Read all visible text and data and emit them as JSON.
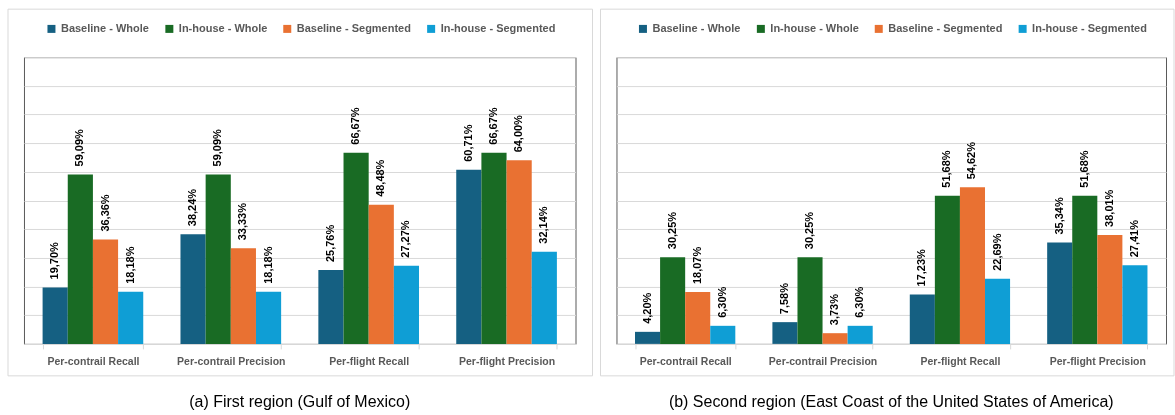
{
  "chart_data": [
    {
      "type": "bar",
      "title": "(a) First region (Gulf of Mexico)",
      "categories": [
        "Per-contrail Recall",
        "Per-contrail Precision",
        "Per-flight Recall",
        "Per-flight Precision"
      ],
      "series": [
        {
          "name": "Baseline - Whole",
          "color": "#156082",
          "values": [
            19.7,
            38.24,
            25.76,
            60.71
          ],
          "value_labels": [
            "19,70%",
            "38,24%",
            "25,76%",
            "60,71%"
          ]
        },
        {
          "name": "In-house - Whole",
          "color": "#196b24",
          "values": [
            59.09,
            59.09,
            66.67,
            66.67
          ],
          "value_labels": [
            "59,09%",
            "59,09%",
            "66,67%",
            "66,67%"
          ]
        },
        {
          "name": "Baseline - Segmented",
          "color": "#e97132",
          "values": [
            36.36,
            33.33,
            48.48,
            64.0
          ],
          "value_labels": [
            "36,36%",
            "33,33%",
            "48,48%",
            "64,00%"
          ]
        },
        {
          "name": "In-house - Segmented",
          "color": "#0f9ed5",
          "values": [
            18.18,
            18.18,
            27.27,
            32.14
          ],
          "value_labels": [
            "18,18%",
            "18,18%",
            "27,27%",
            "32,14%"
          ]
        }
      ],
      "ylim": [
        0,
        100
      ],
      "yticks": [
        {
          "value": 0,
          "label": null
        },
        {
          "value": 10,
          "label": null
        },
        {
          "value": 20,
          "label": null
        },
        {
          "value": 30,
          "label": null
        },
        {
          "value": 40,
          "label": null
        },
        {
          "value": 50,
          "label": null
        },
        {
          "value": 60,
          "label": null
        },
        {
          "value": 70,
          "label": null
        },
        {
          "value": 80,
          "label": null
        },
        {
          "value": 90,
          "label": null
        },
        {
          "value": 100,
          "label": null
        }
      ],
      "grid": "y",
      "legend": "top",
      "tick_labels": "x"
    },
    {
      "type": "bar",
      "title": "(b) Second region (East Coast of the United States of America)",
      "categories": [
        "Per-contrail Recall",
        "Per-contrail Precision",
        "Per-flight Recall",
        "Per-flight Precision"
      ],
      "series": [
        {
          "name": "Baseline - Whole",
          "color": "#156082",
          "values": [
            4.2,
            7.58,
            17.23,
            35.34
          ],
          "value_labels": [
            "4,20%",
            "7,58%",
            "17,23%",
            "35,34%"
          ]
        },
        {
          "name": "In-house - Whole",
          "color": "#196b24",
          "values": [
            30.25,
            30.25,
            51.68,
            51.68
          ],
          "value_labels": [
            "30,25%",
            "30,25%",
            "51,68%",
            "51,68%"
          ]
        },
        {
          "name": "Baseline - Segmented",
          "color": "#e97132",
          "values": [
            18.07,
            3.73,
            54.62,
            38.01
          ],
          "value_labels": [
            "18,07%",
            "3,73%",
            "54,62%",
            "38,01%"
          ]
        },
        {
          "name": "In-house - Segmented",
          "color": "#0f9ed5",
          "values": [
            6.3,
            6.3,
            22.69,
            27.41
          ],
          "value_labels": [
            "6,30%",
            "6,30%",
            "22,69%",
            "27,41%"
          ]
        }
      ],
      "ylim": [
        0,
        100
      ],
      "yticks": [
        {
          "value": 0,
          "label": null
        },
        {
          "value": 10,
          "label": null
        },
        {
          "value": 20,
          "label": null
        },
        {
          "value": 30,
          "label": null
        },
        {
          "value": 40,
          "label": null
        },
        {
          "value": 50,
          "label": null
        },
        {
          "value": 60,
          "label": null
        },
        {
          "value": 70,
          "label": null
        },
        {
          "value": 80,
          "label": null
        },
        {
          "value": 90,
          "label": null
        },
        {
          "value": 100,
          "label": null
        }
      ],
      "grid": "y",
      "legend": "top",
      "tick_labels": "x"
    }
  ]
}
